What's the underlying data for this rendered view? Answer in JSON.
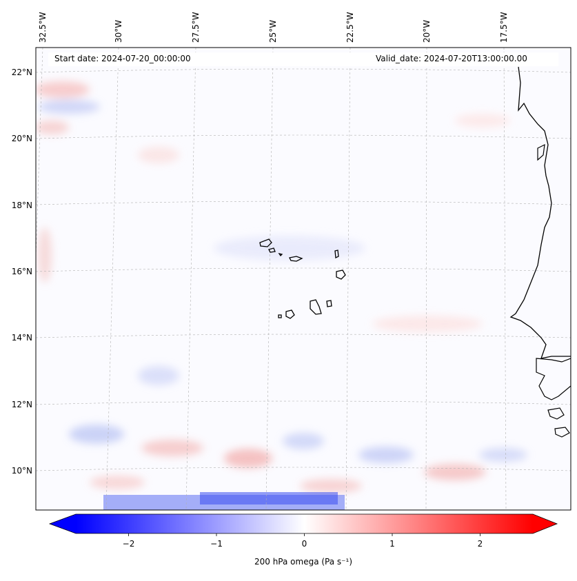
{
  "map": {
    "start_date": "Start date: 2024-07-20_00:00:00",
    "valid_date": "Valid_date: 2024-07-20T13:00:00.00",
    "lon_labels": [
      "32.5°W",
      "30°W",
      "27.5°W",
      "25°W",
      "22.5°W",
      "20°W",
      "17.5°W"
    ],
    "lat_labels": [
      "22°N",
      "20°N",
      "18°N",
      "16°N",
      "14°N",
      "12°N",
      "10°N"
    ],
    "colors": {
      "negative": "#0000ff",
      "positive": "#ff0000",
      "neutral": "#ffffff",
      "coast": "#000000",
      "grid": "#b0b0b0"
    }
  },
  "colorbar": {
    "label": "200 hPa omega (Pa s⁻¹)",
    "ticks": [
      "−2",
      "−1",
      "0",
      "1",
      "2"
    ],
    "range": [
      -2.6,
      2.6
    ]
  }
}
